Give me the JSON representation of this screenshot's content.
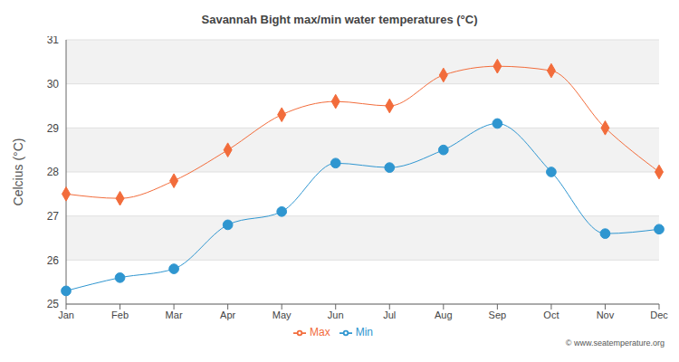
{
  "chart_data": {
    "type": "line",
    "title": "Savannah Bight max/min water temperatures (°C)",
    "y_label": "Celcius (°C)",
    "categories": [
      "Jan",
      "Feb",
      "Mar",
      "Apr",
      "May",
      "Jun",
      "Jul",
      "Aug",
      "Sep",
      "Oct",
      "Nov",
      "Dec"
    ],
    "series": [
      {
        "name": "Max",
        "color": "#f26c3b",
        "marker": "diamond",
        "values": [
          27.5,
          27.4,
          27.8,
          28.5,
          29.3,
          29.6,
          29.5,
          30.2,
          30.4,
          30.3,
          29.0,
          28.0
        ]
      },
      {
        "name": "Min",
        "color": "#2f96d0",
        "marker": "circle",
        "values": [
          25.3,
          25.6,
          25.8,
          26.8,
          27.1,
          28.2,
          28.1,
          28.5,
          29.1,
          28.0,
          26.6,
          26.7
        ]
      }
    ],
    "ylim": [
      25,
      31
    ],
    "yticks": [
      25,
      26,
      27,
      28,
      29,
      30,
      31
    ],
    "grid": true,
    "legend": "bottom",
    "annotations": [
      "© www.seatemperature.org"
    ]
  }
}
